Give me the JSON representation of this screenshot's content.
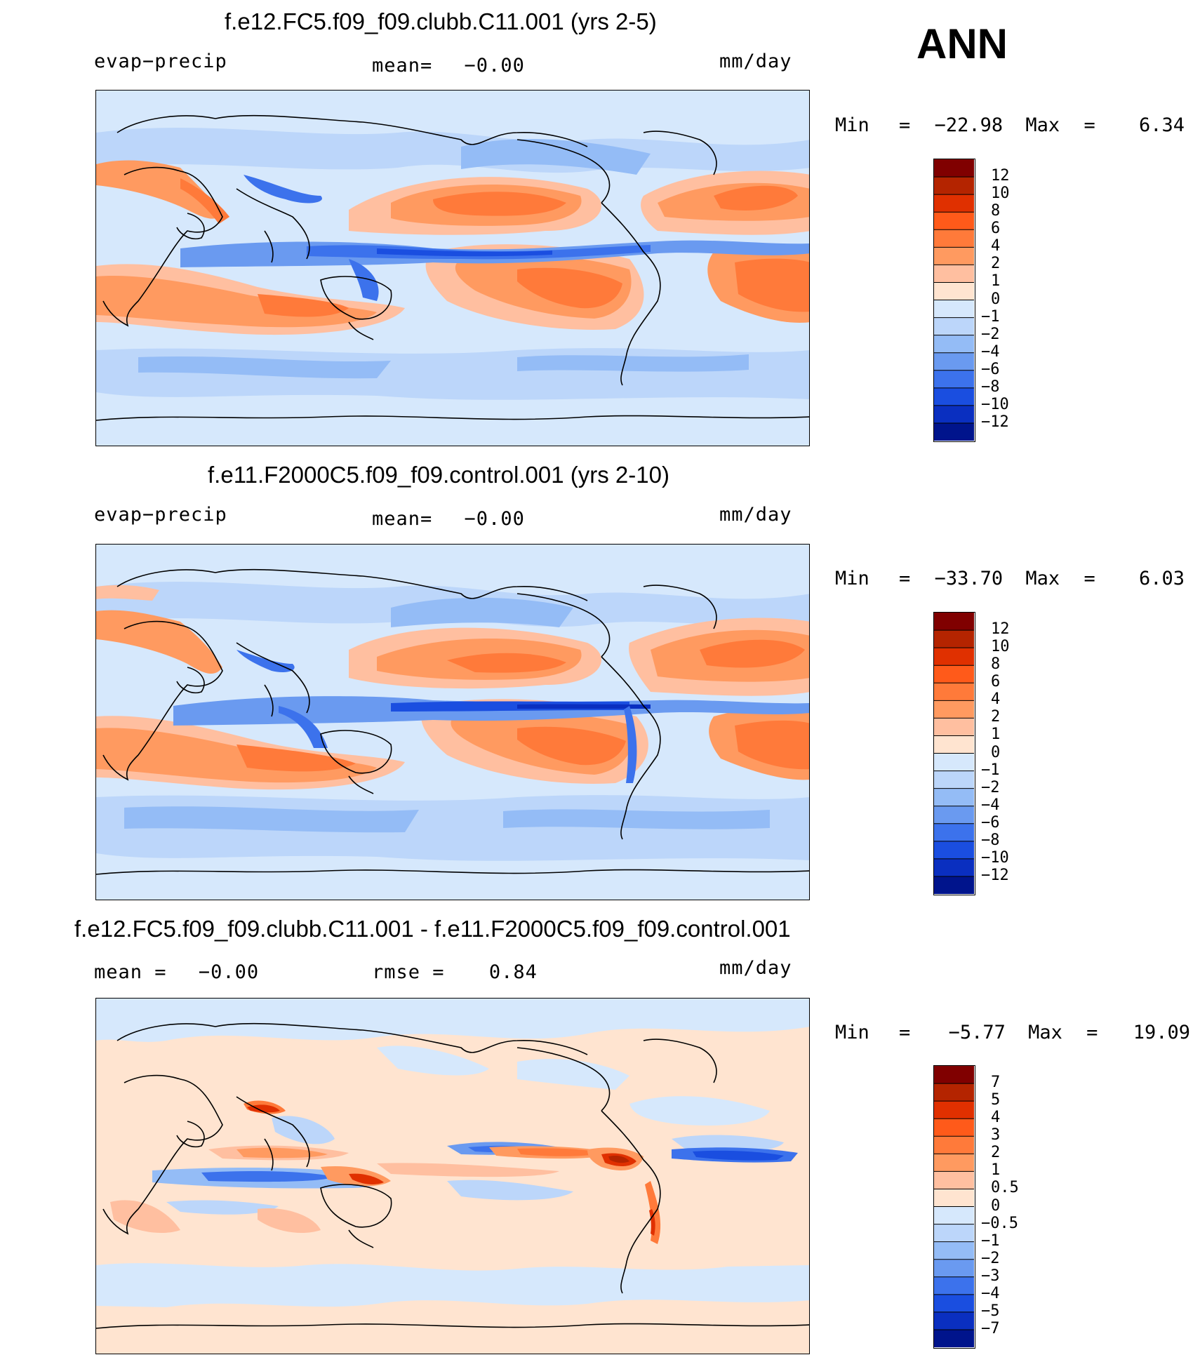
{
  "figure": {
    "season": "ANN"
  },
  "chart_data": [
    {
      "type": "heatmap",
      "title": "f.e12.FC5.f09_f09.clubb.C11.001 (yrs 2-5)",
      "variable": "evap−precip",
      "units": "mm/day",
      "mean_label": "mean=",
      "mean_value": "−0.00",
      "min_label": "Min",
      "min_value": "−22.98",
      "max_label": "Max",
      "max_value": "6.34",
      "colorbar": {
        "levels": [
          "12",
          "10",
          "8",
          "6",
          "4",
          "2",
          "1",
          "0",
          "−1",
          "−2",
          "−4",
          "−6",
          "−8",
          "−10",
          "−12"
        ],
        "colors": [
          "#800000",
          "#b42400",
          "#e03000",
          "#ff5a1a",
          "#ff7a3a",
          "#ff9a60",
          "#ffbfa0",
          "#ffe4d0",
          "#d6e8fc",
          "#bcd6fa",
          "#94bcf6",
          "#6a9af0",
          "#3c72ec",
          "#1a4ee0",
          "#0a2fc0",
          "#00148c"
        ]
      }
    },
    {
      "type": "heatmap",
      "title": "f.e11.F2000C5.f09_f09.control.001 (yrs 2-10)",
      "variable": "evap−precip",
      "units": "mm/day",
      "mean_label": "mean=",
      "mean_value": "−0.00",
      "min_label": "Min",
      "min_value": "−33.70",
      "max_label": "Max",
      "max_value": "6.03",
      "colorbar": {
        "levels": [
          "12",
          "10",
          "8",
          "6",
          "4",
          "2",
          "1",
          "0",
          "−1",
          "−2",
          "−4",
          "−6",
          "−8",
          "−10",
          "−12"
        ],
        "colors": [
          "#800000",
          "#b42400",
          "#e03000",
          "#ff5a1a",
          "#ff7a3a",
          "#ff9a60",
          "#ffbfa0",
          "#ffe4d0",
          "#d6e8fc",
          "#bcd6fa",
          "#94bcf6",
          "#6a9af0",
          "#3c72ec",
          "#1a4ee0",
          "#0a2fc0",
          "#00148c"
        ]
      }
    },
    {
      "type": "heatmap",
      "title": "f.e12.FC5.f09_f09.clubb.C11.001 - f.e11.F2000C5.f09_f09.control.001",
      "mean_label": "mean =",
      "mean_value": "−0.00",
      "rmse_label": "rmse =",
      "rmse_value": "0.84",
      "units": "mm/day",
      "min_label": "Min",
      "min_value": "−5.77",
      "max_label": "Max",
      "max_value": "19.09",
      "colorbar": {
        "levels": [
          "7",
          "5",
          "4",
          "3",
          "2",
          "1",
          "0.5",
          "0",
          "−0.5",
          "−1",
          "−2",
          "−3",
          "−4",
          "−5",
          "−7"
        ],
        "colors": [
          "#800000",
          "#b42400",
          "#e03000",
          "#ff5a1a",
          "#ff7a3a",
          "#ff9a60",
          "#ffbfa0",
          "#ffe4d0",
          "#d6e8fc",
          "#bcd6fa",
          "#94bcf6",
          "#6a9af0",
          "#3c72ec",
          "#1a4ee0",
          "#0a2fc0",
          "#00148c"
        ]
      }
    }
  ]
}
